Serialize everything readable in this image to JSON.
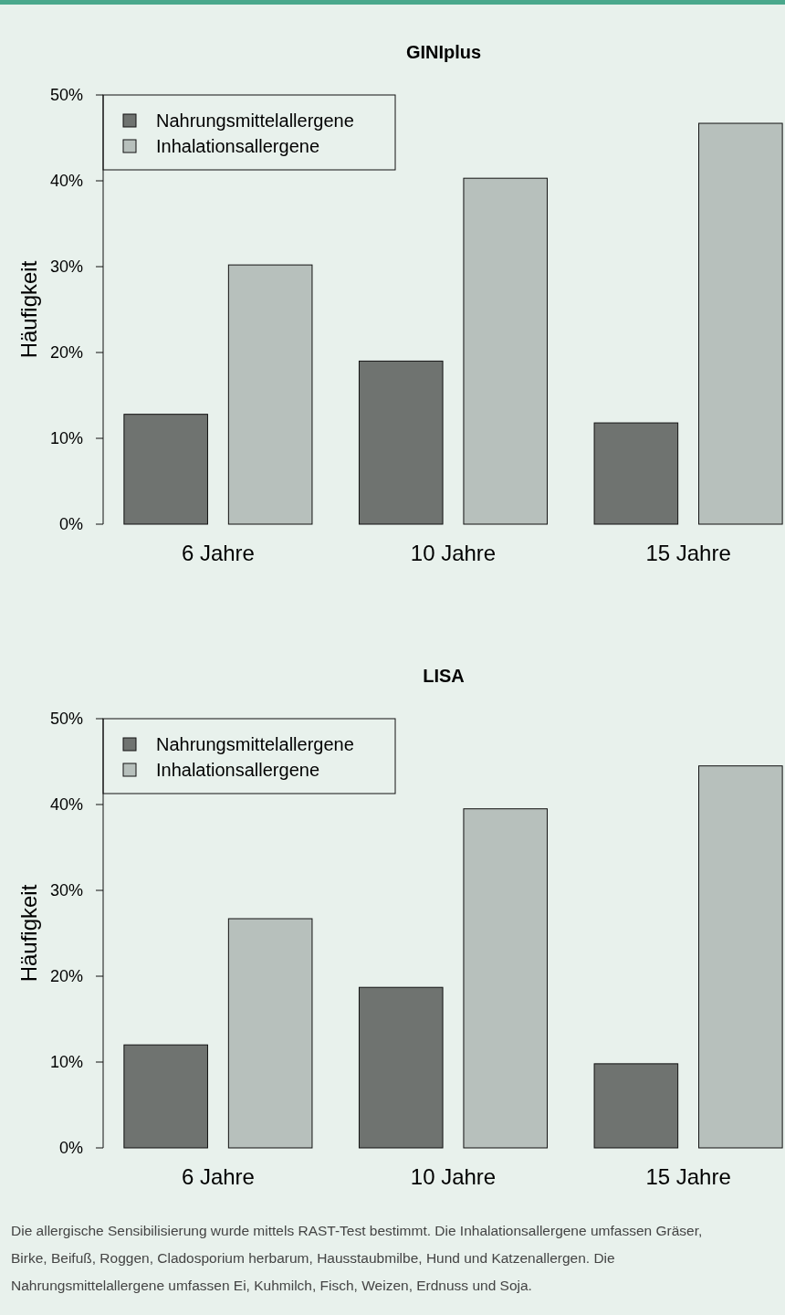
{
  "chart_data": [
    {
      "type": "bar",
      "title": "GINIplus",
      "ylabel": "Häufigkeit",
      "categories": [
        "6 Jahre",
        "10 Jahre",
        "15 Jahre"
      ],
      "series": [
        {
          "name": "Nahrungsmittelallergene",
          "color": "#6f7370",
          "values": [
            12.8,
            19.0,
            11.8
          ]
        },
        {
          "name": "Inhalationsallergene",
          "color": "#b7c0bc",
          "values": [
            30.2,
            40.3,
            46.7
          ]
        }
      ],
      "ylim": [
        0,
        50
      ],
      "yticks": [
        {
          "value": 0,
          "label": "0%"
        },
        {
          "value": 10,
          "label": "10%"
        },
        {
          "value": 20,
          "label": "20%"
        },
        {
          "value": 30,
          "label": "30%"
        },
        {
          "value": 40,
          "label": "40%"
        },
        {
          "value": 50,
          "label": "50%"
        }
      ],
      "legend": "top left",
      "grid": false
    },
    {
      "type": "bar",
      "title": "LISA",
      "ylabel": "Häufigkeit",
      "categories": [
        "6 Jahre",
        "10 Jahre",
        "15 Jahre"
      ],
      "series": [
        {
          "name": "Nahrungsmittelallergene",
          "color": "#6f7370",
          "values": [
            12.0,
            18.7,
            9.8
          ]
        },
        {
          "name": "Inhalationsallergene",
          "color": "#b7c0bc",
          "values": [
            26.7,
            39.5,
            44.5
          ]
        }
      ],
      "ylim": [
        0,
        50
      ],
      "yticks": [
        {
          "value": 0,
          "label": "0%"
        },
        {
          "value": 10,
          "label": "10%"
        },
        {
          "value": 20,
          "label": "20%"
        },
        {
          "value": 30,
          "label": "30%"
        },
        {
          "value": 40,
          "label": "40%"
        },
        {
          "value": 50,
          "label": "50%"
        }
      ],
      "legend": "top left",
      "grid": false,
      "annotations": [
        "Die allergische Sensibilisierung wurde mittels RAST-Test bestimmt. Die Inhalationsallergene umfassen Gräser, Birke, Beifuß, Roggen, Cladosporium herbarum, Hausstaubmilbe, Hund und Katzenallergen. Die Nahrungsmittelallergene umfassen Ei, Kuhmilch, Fisch, Weizen, Erdnuss und Soja."
      ]
    }
  ]
}
